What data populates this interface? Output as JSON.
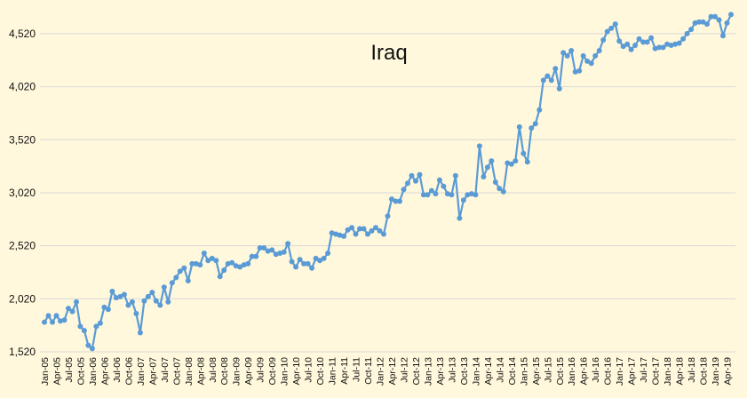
{
  "chart_data": {
    "type": "line",
    "title": "Iraq",
    "xlabel": "",
    "ylabel": "",
    "ylim": [
      1520,
      4720
    ],
    "yticks": [
      1520,
      2020,
      2520,
      3020,
      3520,
      4020,
      4520
    ],
    "ytick_labels": [
      "1,520",
      "2,020",
      "2,520",
      "3,020",
      "3,520",
      "4,020",
      "4,520"
    ],
    "grid": true,
    "legend": "none",
    "x_tick_labels": [
      "Jan-05",
      "Apr-05",
      "Jul-05",
      "Oct-05",
      "Jan-06",
      "Apr-06",
      "Jul-06",
      "Oct-06",
      "Jan-07",
      "Apr-07",
      "Jul-07",
      "Oct-07",
      "Jan-08",
      "Apr-08",
      "Jul-08",
      "Oct-08",
      "Jan-09",
      "Apr-09",
      "Jul-09",
      "Oct-09",
      "Jan-10",
      "Apr-10",
      "Jul-10",
      "Oct-10",
      "Jan-11",
      "Apr-11",
      "Jul-11",
      "Oct-11",
      "Jan-12",
      "Apr-12",
      "Jul-12",
      "Oct-12",
      "Jan-13",
      "Apr-13",
      "Jul-13",
      "Oct-13",
      "Jan-14",
      "Apr-14",
      "Jul-14",
      "Oct-14",
      "Jan-15",
      "Apr-15",
      "Jul-15",
      "Oct-15",
      "Jan-16",
      "Apr-16",
      "Jul-16",
      "Oct-16",
      "Jan-17",
      "Apr-17",
      "Jul-17",
      "Oct-17",
      "Jan-18",
      "Apr-18",
      "Jul-18",
      "Oct-18",
      "Jan-19",
      "Apr-19"
    ],
    "series": [
      {
        "color": "#5b9bd5",
        "start": "Jan-05",
        "values": [
          1800,
          1860,
          1800,
          1860,
          1810,
          1820,
          1930,
          1900,
          1990,
          1760,
          1720,
          1580,
          1550,
          1760,
          1790,
          1940,
          1920,
          2090,
          2030,
          2040,
          2060,
          1960,
          1990,
          1880,
          1700,
          2000,
          2040,
          2080,
          2000,
          1960,
          2130,
          1990,
          2170,
          2220,
          2280,
          2310,
          2190,
          2350,
          2350,
          2340,
          2450,
          2380,
          2400,
          2380,
          2230,
          2290,
          2350,
          2360,
          2330,
          2320,
          2340,
          2350,
          2420,
          2420,
          2500,
          2500,
          2470,
          2480,
          2440,
          2450,
          2460,
          2540,
          2370,
          2320,
          2390,
          2350,
          2350,
          2310,
          2400,
          2380,
          2400,
          2450,
          2640,
          2630,
          2620,
          2610,
          2670,
          2690,
          2630,
          2680,
          2680,
          2630,
          2660,
          2690,
          2660,
          2630,
          2800,
          2960,
          2940,
          2940,
          3050,
          3110,
          3180,
          3130,
          3190,
          3000,
          3000,
          3040,
          3010,
          3140,
          3080,
          3010,
          3000,
          3180,
          2780,
          2950,
          3000,
          3010,
          3000,
          3460,
          3170,
          3260,
          3320,
          3120,
          3060,
          3030,
          3300,
          3290,
          3320,
          3640,
          3390,
          3310,
          3630,
          3670,
          3800,
          4080,
          4120,
          4080,
          4190,
          4000,
          4340,
          4310,
          4360,
          4160,
          4170,
          4310,
          4260,
          4240,
          4310,
          4360,
          4460,
          4540,
          4570,
          4610,
          4450,
          4400,
          4420,
          4370,
          4410,
          4470,
          4440,
          4440,
          4480,
          4380,
          4390,
          4390,
          4420,
          4410,
          4420,
          4430,
          4470,
          4520,
          4560,
          4620,
          4630,
          4630,
          4610,
          4680,
          4680,
          4650,
          4500,
          4620,
          4700
        ]
      }
    ]
  }
}
